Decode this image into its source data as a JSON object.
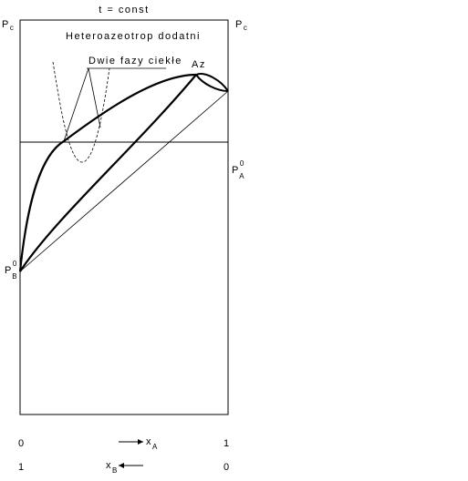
{
  "header": {
    "title": "t = const"
  },
  "labels": {
    "pc_left": {
      "main": "P",
      "sub": "c"
    },
    "pc_right": {
      "main": "P",
      "sub": "c"
    },
    "heteroazeotrope": "Heteroazeotrop dodatni",
    "two_phases": "Dwie fazy ciekłe",
    "az": "Az",
    "pa0": {
      "main": "P",
      "sup": "0",
      "sub": "A"
    },
    "pb0": {
      "main": "P",
      "sup": "0",
      "sub": "B"
    }
  },
  "axis": {
    "xa_start": "0",
    "xa_end": "1",
    "xa": {
      "main": "x",
      "sub": "A"
    },
    "xb_start": "1",
    "xb_end": "0",
    "xb": {
      "main": "x",
      "sub": "B"
    }
  }
}
